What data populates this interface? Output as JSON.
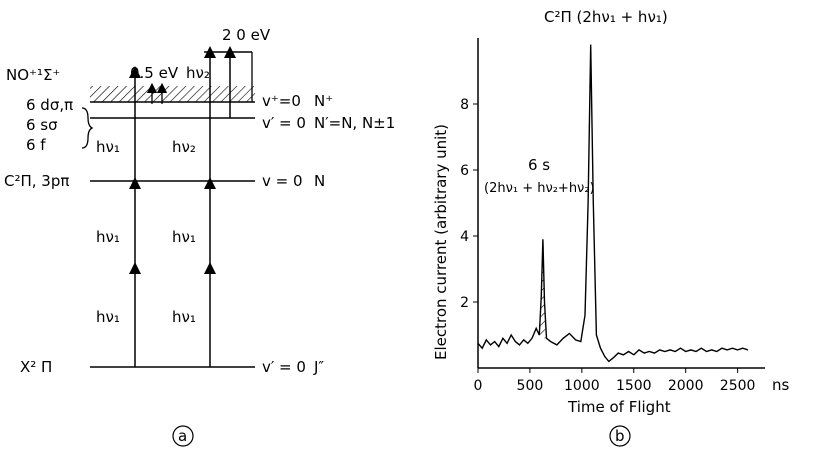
{
  "panel_a": {
    "caption": "(a)",
    "left_labels": {
      "ion": "NO⁺¹Σ⁺",
      "rydberg_1": "6 dσ,π",
      "rydberg_2": "6 sσ",
      "rydberg_3": "6 f",
      "c_state": "C²Π, 3pπ",
      "ground": "X² Π"
    },
    "right_labels": {
      "ion_v": "v⁺=0",
      "ion_n": "N⁺",
      "ryd_v": "v′ = 0",
      "ryd_n": "N′=N, N±1",
      "c_v": "v = 0",
      "c_n": "N",
      "ground_v": "v′ = 0",
      "ground_j": "J″"
    },
    "arrow_labels": {
      "energy_top": "2 0 eV",
      "energy_half": "0.5 eV",
      "hv2_top": "hν₂",
      "hv1_mid": "hν₁",
      "hv2_mid": "hν₂",
      "hv1_a": "hν₁",
      "hv1_b": "hν₁",
      "hv1_c": "hν₁",
      "hv1_d": "hν₁"
    }
  },
  "panel_b": {
    "caption": "(b)",
    "chart_data": {
      "type": "line",
      "xlabel": "Time of Flight",
      "ylabel": "Electron current (arbitrary unit)",
      "x_unit": "ns",
      "xlim": [
        0,
        2600
      ],
      "ylim": [
        0,
        10
      ],
      "xticks": [
        0,
        500,
        1000,
        1500,
        2000,
        2500
      ],
      "yticks": [
        2,
        4,
        6,
        8
      ],
      "annotations": {
        "peak1_title": "6 s",
        "peak1_formula": "(2hν₁ + hν₂+hν₂)",
        "peak2_formula": "C²Π (2hν₁ + hν₁)"
      },
      "points": [
        [
          0,
          0.75
        ],
        [
          40,
          0.6
        ],
        [
          80,
          0.85
        ],
        [
          120,
          0.7
        ],
        [
          160,
          0.8
        ],
        [
          200,
          0.65
        ],
        [
          240,
          0.9
        ],
        [
          280,
          0.75
        ],
        [
          320,
          1.0
        ],
        [
          360,
          0.8
        ],
        [
          400,
          0.7
        ],
        [
          440,
          0.85
        ],
        [
          480,
          0.75
        ],
        [
          520,
          0.9
        ],
        [
          560,
          1.2
        ],
        [
          590,
          1.0
        ],
        [
          610,
          2.2
        ],
        [
          625,
          3.9
        ],
        [
          640,
          2.0
        ],
        [
          660,
          0.9
        ],
        [
          700,
          0.8
        ],
        [
          760,
          0.7
        ],
        [
          820,
          0.9
        ],
        [
          880,
          1.05
        ],
        [
          940,
          0.85
        ],
        [
          990,
          0.8
        ],
        [
          1030,
          1.6
        ],
        [
          1060,
          5.0
        ],
        [
          1085,
          9.8
        ],
        [
          1110,
          5.0
        ],
        [
          1140,
          1.0
        ],
        [
          1180,
          0.6
        ],
        [
          1220,
          0.35
        ],
        [
          1260,
          0.2
        ],
        [
          1300,
          0.3
        ],
        [
          1350,
          0.45
        ],
        [
          1400,
          0.4
        ],
        [
          1450,
          0.5
        ],
        [
          1500,
          0.4
        ],
        [
          1550,
          0.55
        ],
        [
          1600,
          0.45
        ],
        [
          1650,
          0.5
        ],
        [
          1700,
          0.45
        ],
        [
          1750,
          0.55
        ],
        [
          1800,
          0.5
        ],
        [
          1850,
          0.55
        ],
        [
          1900,
          0.5
        ],
        [
          1950,
          0.6
        ],
        [
          2000,
          0.5
        ],
        [
          2050,
          0.55
        ],
        [
          2100,
          0.5
        ],
        [
          2150,
          0.6
        ],
        [
          2200,
          0.5
        ],
        [
          2250,
          0.55
        ],
        [
          2300,
          0.5
        ],
        [
          2350,
          0.6
        ],
        [
          2400,
          0.55
        ],
        [
          2450,
          0.6
        ],
        [
          2500,
          0.55
        ],
        [
          2550,
          0.6
        ],
        [
          2600,
          0.55
        ]
      ],
      "shaded_region": [
        590,
        650
      ]
    }
  }
}
